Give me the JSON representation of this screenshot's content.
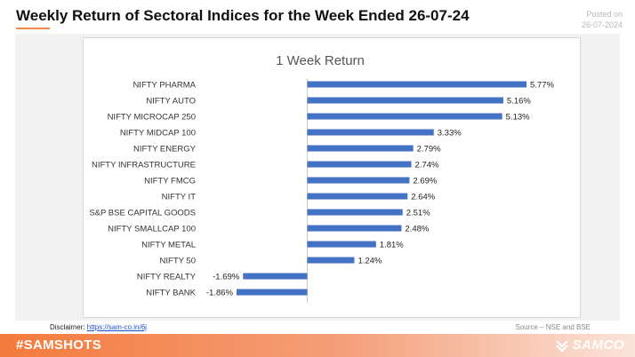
{
  "header": {
    "title": "Weekly Return of Sectoral Indices for the Week Ended 26-07-24",
    "posted_label": "Posted on",
    "posted_date": "26-07-2024"
  },
  "footer": {
    "disclaimer_label": "Disclaimer:",
    "disclaimer_link": "https://sam-co.in/6j",
    "source": "Source – NSE and BSE",
    "hashtag": "#SAMSHOTS",
    "brand": "SAMCO"
  },
  "colors": {
    "bar": "#4472c4",
    "accent": "#f47a3c"
  },
  "chart_data": {
    "type": "bar",
    "orientation": "horizontal",
    "title": "1 Week Return",
    "categories": [
      "NIFTY PHARMA",
      "NIFTY AUTO",
      "NIFTY MICROCAP 250",
      "NIFTY MIDCAP 100",
      "NIFTY ENERGY",
      "NIFTY INFRASTRUCTURE",
      "NIFTY FMCG",
      "NIFTY IT",
      "S&P BSE CAPITAL GOODS",
      "NIFTY SMALLCAP 100",
      "NIFTY METAL",
      "NIFTY 50",
      "NIFTY REALTY",
      "NIFTY BANK"
    ],
    "values": [
      5.77,
      5.16,
      5.13,
      3.33,
      2.79,
      2.74,
      2.69,
      2.64,
      2.51,
      2.48,
      1.81,
      1.24,
      -1.69,
      -1.86
    ],
    "labels": [
      "5.77%",
      "5.16%",
      "5.13%",
      "3.33%",
      "2.79%",
      "2.74%",
      "2.69%",
      "2.64%",
      "2.51%",
      "2.48%",
      "1.81%",
      "1.24%",
      "-1.69%",
      "-1.86%"
    ],
    "xlim": [
      -1.86,
      5.77
    ],
    "grid": false,
    "legend": "none"
  }
}
